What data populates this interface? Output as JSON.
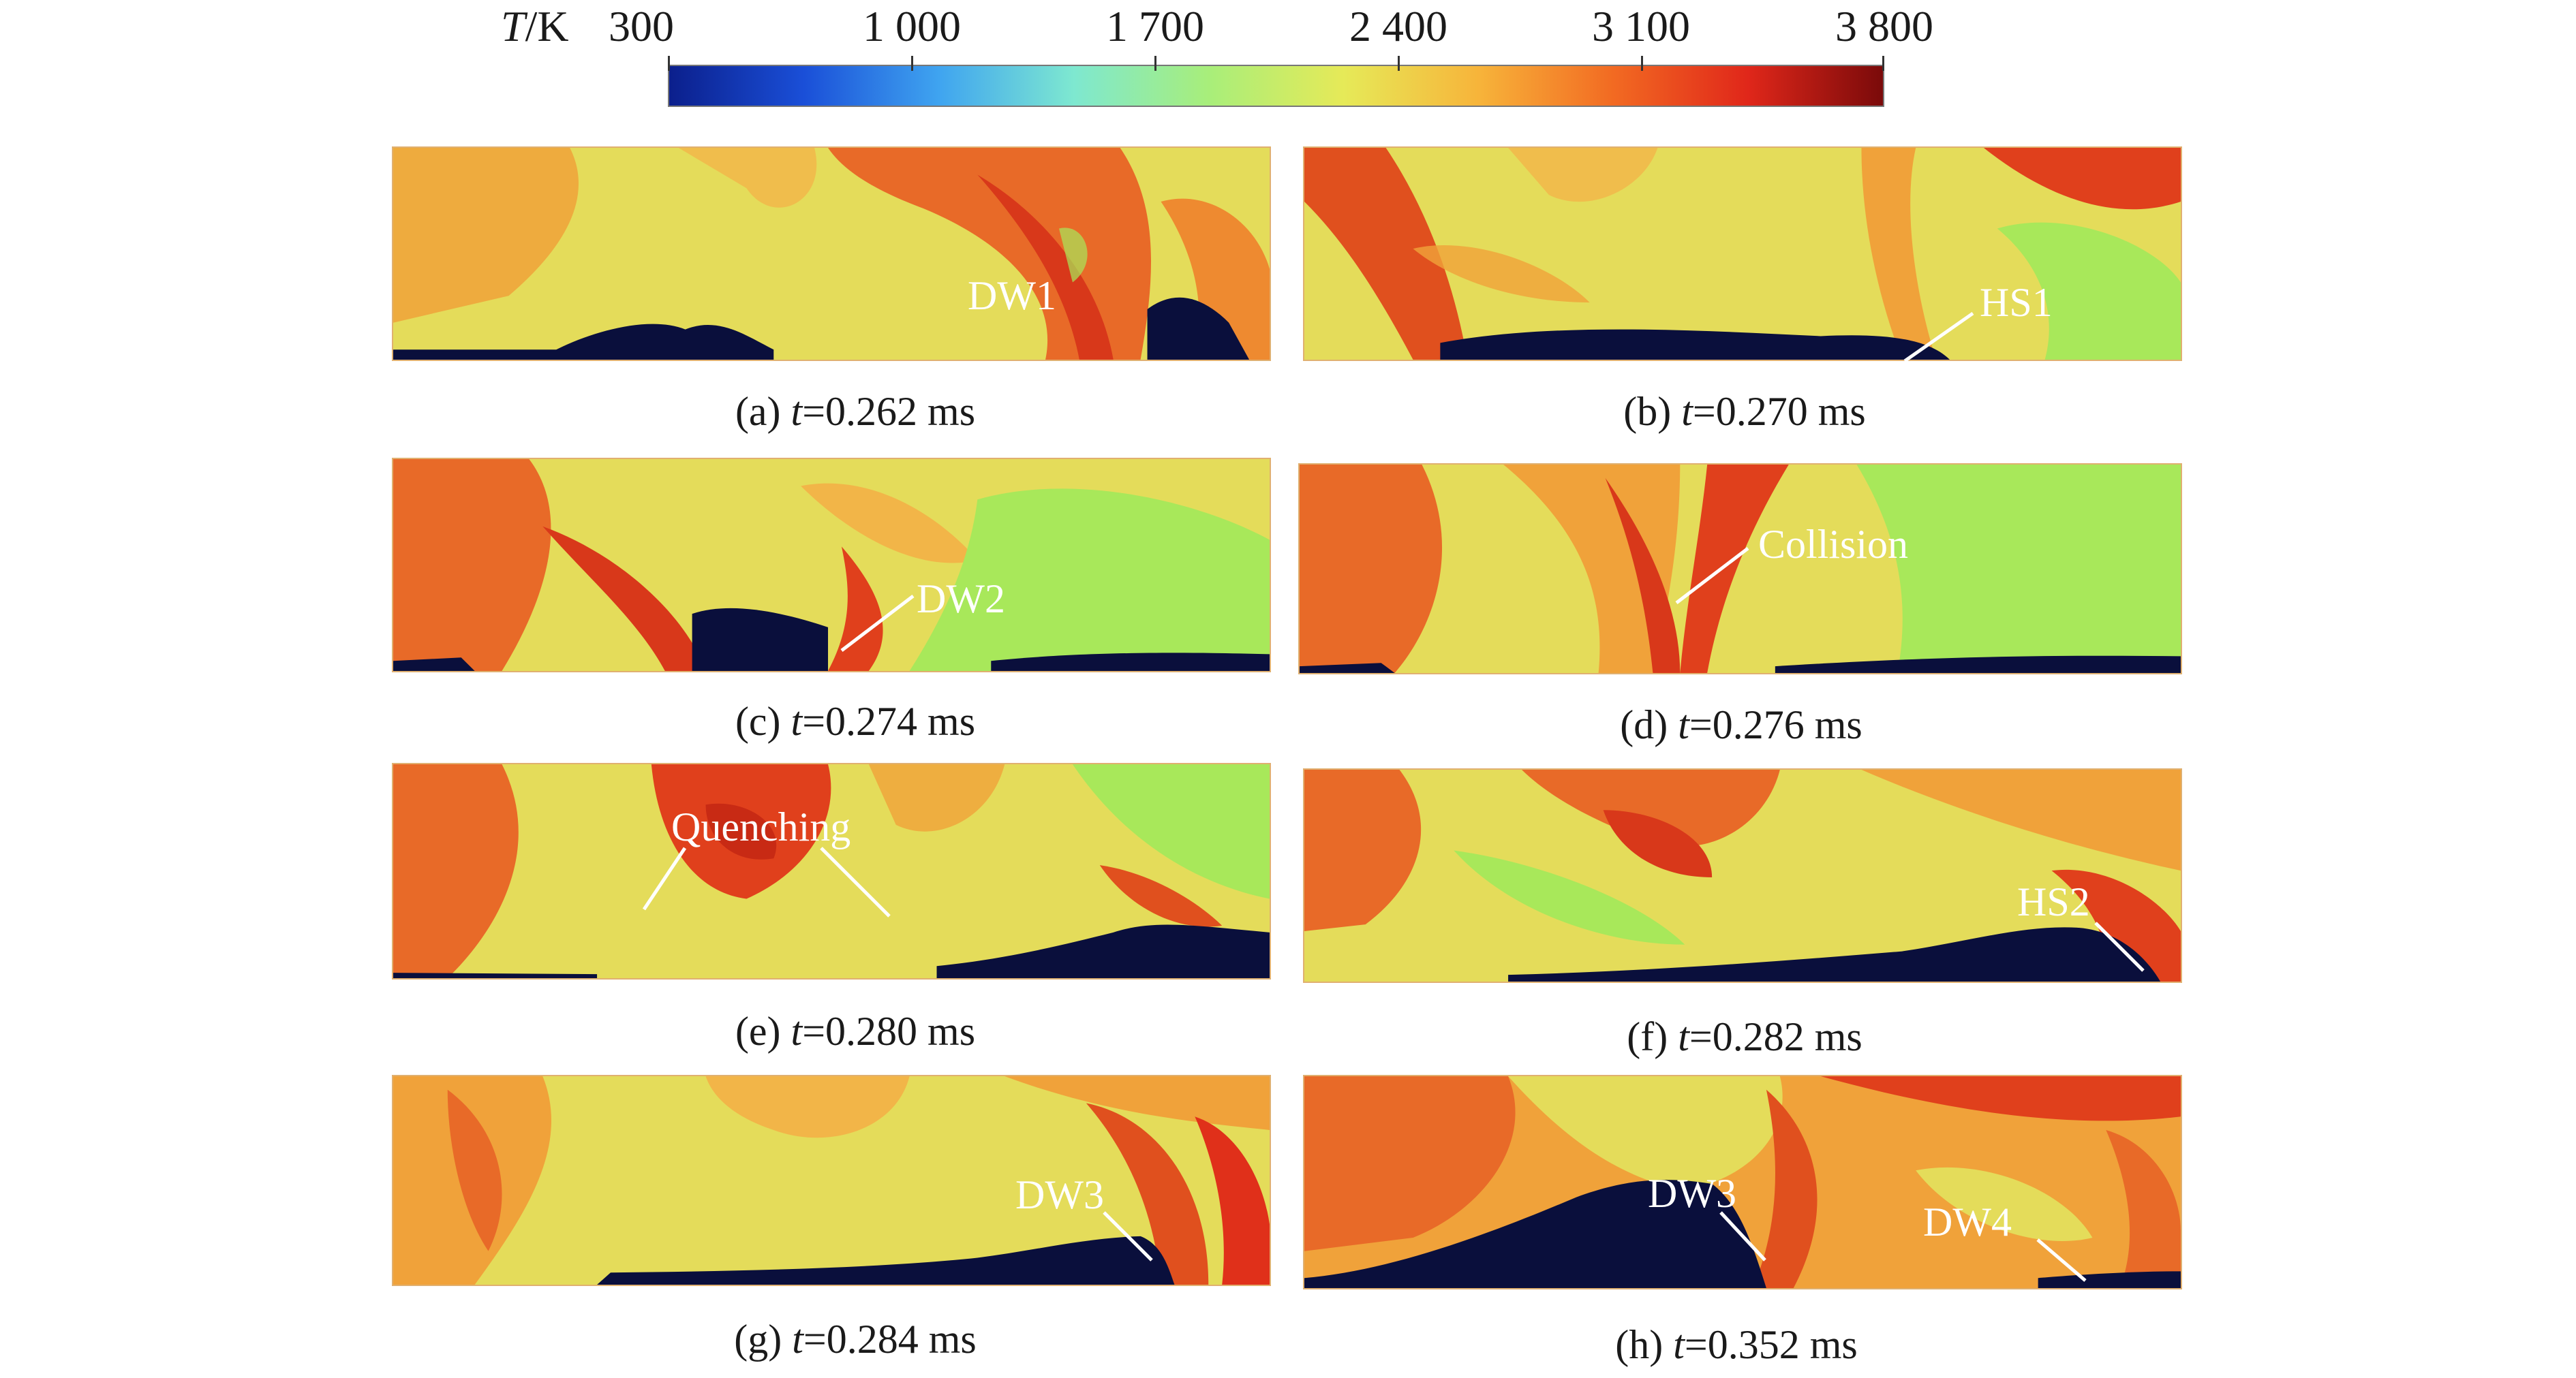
{
  "colorbar": {
    "title_var": "T",
    "title_unit": "/K",
    "ticks": [
      "300",
      "1 000",
      "1 700",
      "2 400",
      "3 100",
      "3 800"
    ],
    "range": [
      300,
      3800
    ],
    "colormap": [
      "#0b1f8c",
      "#1a4fd8",
      "#3fa4f0",
      "#7ee8d0",
      "#a8ee7a",
      "#e6ea58",
      "#f7b43a",
      "#f26a22",
      "#e0271a",
      "#7a0a0a"
    ]
  },
  "panels": [
    {
      "letter": "(a)",
      "t_var": "t",
      "t_value": "=0.262 ms",
      "annotations": [
        "DW1"
      ]
    },
    {
      "letter": "(b)",
      "t_var": "t",
      "t_value": "=0.270 ms",
      "annotations": [
        "HS1"
      ]
    },
    {
      "letter": "(c)",
      "t_var": "t",
      "t_value": "=0.274 ms",
      "annotations": [
        "DW2"
      ]
    },
    {
      "letter": "(d)",
      "t_var": "t",
      "t_value": "=0.276 ms",
      "annotations": [
        "Collision"
      ]
    },
    {
      "letter": "(e)",
      "t_var": "t",
      "t_value": "=0.280 ms",
      "annotations": [
        "Quenching"
      ]
    },
    {
      "letter": "(f)",
      "t_var": "t",
      "t_value": "=0.282 ms",
      "annotations": [
        "HS2"
      ]
    },
    {
      "letter": "(g)",
      "t_var": "t",
      "t_value": "=0.284 ms",
      "annotations": [
        "DW3"
      ]
    },
    {
      "letter": "(h)",
      "t_var": "t",
      "t_value": "=0.352 ms",
      "annotations": [
        "DW3",
        "DW4"
      ]
    }
  ],
  "colors": {
    "field_base": "#e4dc5a",
    "field_warm": "#f0a23a",
    "field_hot": "#e0451e",
    "field_cool": "#a8e85a",
    "fresh_mixture": "#0a0f3c",
    "annotation": "#ffffff"
  }
}
